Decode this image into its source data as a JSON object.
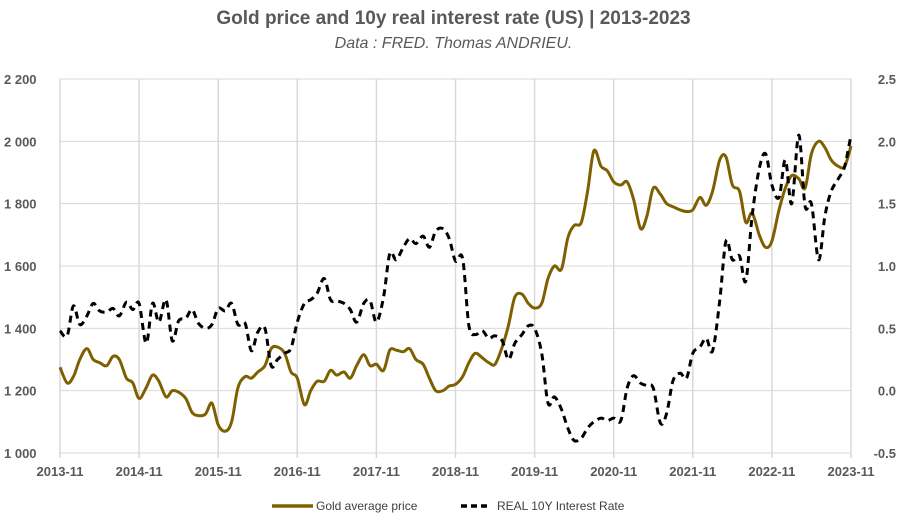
{
  "chart_data": {
    "type": "line",
    "title": "Gold price and 10y real interest rate (US) | 2013-2023",
    "subtitle": "Data : FRED. Thomas ANDRIEU.",
    "xlabel": "",
    "ylabel_left": "",
    "ylabel_right": "",
    "x_ticks": [
      "2013-11",
      "2014-11",
      "2015-11",
      "2016-11",
      "2017-11",
      "2018-11",
      "2019-11",
      "2020-11",
      "2021-11",
      "2022-11",
      "2023-11"
    ],
    "y_left_ticks": [
      "1 000",
      "1 200",
      "1 400",
      "1 600",
      "1 800",
      "2 000",
      "2 200"
    ],
    "y_left_values": [
      1000,
      1200,
      1400,
      1600,
      1800,
      2000,
      2200
    ],
    "y_right_ticks": [
      "-0.5",
      "0.0",
      "0.5",
      "1.0",
      "1.5",
      "2.0",
      "2.5"
    ],
    "y_right_values": [
      -0.5,
      0,
      0.5,
      1.0,
      1.5,
      2.0,
      2.5
    ],
    "ylim_left": [
      1000,
      2200
    ],
    "ylim_right": [
      -0.5,
      2.5
    ],
    "xlim": [
      2013.83,
      2023.83
    ],
    "grid": true,
    "legend_position": "bottom",
    "colors": {
      "gold": "#7f6000",
      "rate": "#000000",
      "grid": "#d9d9d9",
      "text": "#595959"
    },
    "series": [
      {
        "name": "Gold average price",
        "axis": "left",
        "style": "solid",
        "x": [
          2013.83,
          2013.92,
          2014.0,
          2014.08,
          2014.17,
          2014.25,
          2014.33,
          2014.42,
          2014.5,
          2014.58,
          2014.67,
          2014.75,
          2014.83,
          2014.92,
          2015.0,
          2015.08,
          2015.17,
          2015.25,
          2015.33,
          2015.42,
          2015.5,
          2015.58,
          2015.67,
          2015.75,
          2015.83,
          2015.92,
          2016.0,
          2016.08,
          2016.17,
          2016.25,
          2016.33,
          2016.42,
          2016.5,
          2016.58,
          2016.67,
          2016.75,
          2016.83,
          2016.92,
          2017.0,
          2017.08,
          2017.17,
          2017.25,
          2017.33,
          2017.42,
          2017.5,
          2017.58,
          2017.67,
          2017.75,
          2017.83,
          2017.92,
          2018.0,
          2018.08,
          2018.17,
          2018.25,
          2018.33,
          2018.42,
          2018.5,
          2018.58,
          2018.67,
          2018.75,
          2018.83,
          2018.92,
          2019.0,
          2019.08,
          2019.17,
          2019.25,
          2019.33,
          2019.42,
          2019.5,
          2019.58,
          2019.67,
          2019.75,
          2019.83,
          2019.92,
          2020.0,
          2020.08,
          2020.17,
          2020.25,
          2020.33,
          2020.42,
          2020.5,
          2020.58,
          2020.67,
          2020.75,
          2020.83,
          2020.92,
          2021.0,
          2021.08,
          2021.17,
          2021.25,
          2021.33,
          2021.42,
          2021.5,
          2021.58,
          2021.67,
          2021.75,
          2021.83,
          2021.92,
          2022.0,
          2022.08,
          2022.17,
          2022.25,
          2022.33,
          2022.42,
          2022.5,
          2022.58,
          2022.67,
          2022.75,
          2022.83,
          2022.92,
          2023.0,
          2023.08,
          2023.17,
          2023.25,
          2023.33,
          2023.42,
          2023.5,
          2023.58,
          2023.67,
          2023.75,
          2023.83
        ],
        "values": [
          1275,
          1225,
          1245,
          1300,
          1335,
          1300,
          1290,
          1280,
          1310,
          1300,
          1240,
          1225,
          1175,
          1210,
          1250,
          1230,
          1180,
          1200,
          1195,
          1175,
          1130,
          1120,
          1125,
          1160,
          1090,
          1070,
          1100,
          1210,
          1245,
          1240,
          1260,
          1280,
          1335,
          1340,
          1320,
          1260,
          1240,
          1155,
          1200,
          1230,
          1230,
          1265,
          1250,
          1260,
          1240,
          1280,
          1315,
          1280,
          1285,
          1265,
          1330,
          1330,
          1325,
          1335,
          1300,
          1285,
          1240,
          1200,
          1200,
          1215,
          1220,
          1245,
          1290,
          1320,
          1305,
          1290,
          1285,
          1340,
          1410,
          1500,
          1510,
          1480,
          1465,
          1480,
          1560,
          1600,
          1590,
          1690,
          1730,
          1740,
          1840,
          1970,
          1920,
          1905,
          1870,
          1860,
          1870,
          1815,
          1720,
          1760,
          1850,
          1830,
          1800,
          1790,
          1780,
          1775,
          1780,
          1820,
          1795,
          1840,
          1940,
          1950,
          1860,
          1840,
          1740,
          1770,
          1700,
          1660,
          1680,
          1780,
          1850,
          1890,
          1880,
          1850,
          1960,
          2000,
          1980,
          1940,
          1920,
          1920,
          1985
        ]
      },
      {
        "name": "REAL 10Y Interest Rate",
        "axis": "right",
        "style": "dashed",
        "x": [
          2013.83,
          2013.92,
          2014.0,
          2014.08,
          2014.17,
          2014.25,
          2014.33,
          2014.42,
          2014.5,
          2014.58,
          2014.67,
          2014.75,
          2014.83,
          2014.92,
          2015.0,
          2015.08,
          2015.17,
          2015.25,
          2015.33,
          2015.42,
          2015.5,
          2015.58,
          2015.67,
          2015.75,
          2015.83,
          2015.92,
          2016.0,
          2016.08,
          2016.17,
          2016.25,
          2016.33,
          2016.42,
          2016.5,
          2016.58,
          2016.67,
          2016.75,
          2016.83,
          2016.92,
          2017.0,
          2017.08,
          2017.17,
          2017.25,
          2017.33,
          2017.42,
          2017.5,
          2017.58,
          2017.67,
          2017.75,
          2017.83,
          2017.92,
          2018.0,
          2018.08,
          2018.17,
          2018.25,
          2018.33,
          2018.42,
          2018.5,
          2018.58,
          2018.67,
          2018.75,
          2018.83,
          2018.92,
          2019.0,
          2019.08,
          2019.17,
          2019.25,
          2019.33,
          2019.42,
          2019.5,
          2019.58,
          2019.67,
          2019.75,
          2019.83,
          2019.92,
          2020.0,
          2020.08,
          2020.17,
          2020.25,
          2020.33,
          2020.42,
          2020.5,
          2020.58,
          2020.67,
          2020.75,
          2020.83,
          2020.92,
          2021.0,
          2021.08,
          2021.17,
          2021.25,
          2021.33,
          2021.42,
          2021.5,
          2021.58,
          2021.67,
          2021.75,
          2021.83,
          2021.92,
          2022.0,
          2022.08,
          2022.17,
          2022.25,
          2022.33,
          2022.42,
          2022.5,
          2022.58,
          2022.67,
          2022.75,
          2022.83,
          2022.92,
          2023.0,
          2023.08,
          2023.17,
          2023.25,
          2023.33,
          2023.42,
          2023.5,
          2023.58,
          2023.67,
          2023.75,
          2023.83
        ],
        "values": [
          0.48,
          0.44,
          0.68,
          0.53,
          0.6,
          0.7,
          0.64,
          0.63,
          0.66,
          0.6,
          0.71,
          0.65,
          0.7,
          0.38,
          0.7,
          0.55,
          0.73,
          0.4,
          0.56,
          0.58,
          0.65,
          0.54,
          0.5,
          0.53,
          0.66,
          0.64,
          0.7,
          0.53,
          0.54,
          0.32,
          0.47,
          0.5,
          0.2,
          0.25,
          0.3,
          0.34,
          0.55,
          0.7,
          0.73,
          0.78,
          0.9,
          0.73,
          0.72,
          0.7,
          0.65,
          0.55,
          0.7,
          0.72,
          0.55,
          0.75,
          1.1,
          1.05,
          1.15,
          1.22,
          1.18,
          1.24,
          1.15,
          1.28,
          1.3,
          1.22,
          1.04,
          1.06,
          0.52,
          0.45,
          0.48,
          0.42,
          0.44,
          0.4,
          0.25,
          0.38,
          0.45,
          0.52,
          0.5,
          0.3,
          -0.1,
          -0.05,
          -0.15,
          -0.3,
          -0.4,
          -0.38,
          -0.3,
          -0.25,
          -0.22,
          -0.24,
          -0.22,
          -0.24,
          0.02,
          0.12,
          0.06,
          0.04,
          0.02,
          -0.26,
          -0.18,
          0.08,
          0.14,
          0.1,
          0.3,
          0.35,
          0.42,
          0.32,
          0.72,
          1.2,
          1.05,
          1.08,
          0.88,
          1.4,
          1.78,
          1.9,
          1.65,
          1.55,
          1.85,
          1.5,
          2.05,
          1.48,
          1.5,
          1.05,
          1.4,
          1.6,
          1.7,
          1.8,
          2.05
        ]
      }
    ]
  }
}
